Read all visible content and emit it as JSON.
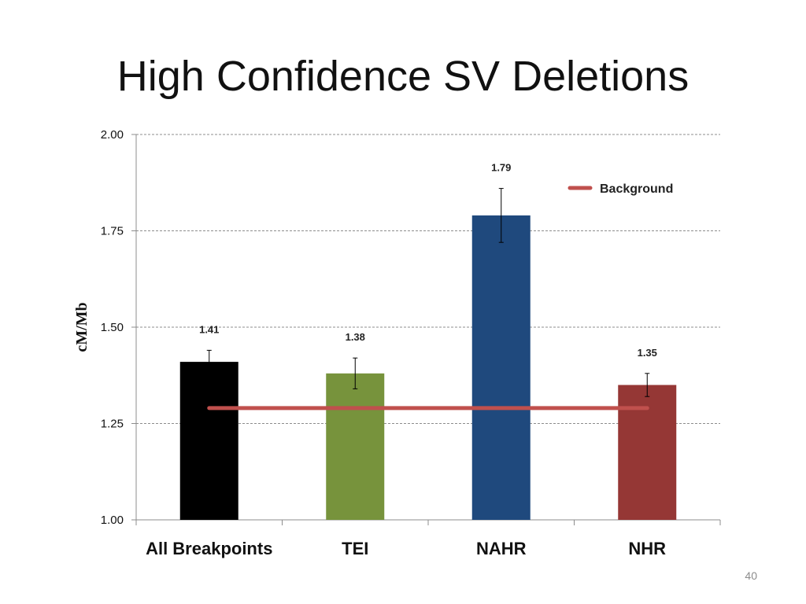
{
  "slide": {
    "title": "High Confidence SV Deletions",
    "page_number": "40"
  },
  "chart_data": {
    "type": "bar",
    "title": "",
    "xlabel": "",
    "ylabel": "cM/Mb",
    "ylim": [
      1.0,
      2.0
    ],
    "yticks": [
      1.0,
      1.25,
      1.5,
      1.75,
      2.0
    ],
    "ytick_labels": [
      "1.00",
      "1.25",
      "1.50",
      "1.75",
      "2.00"
    ],
    "grid": true,
    "categories": [
      "All Breakpoints",
      "TEI",
      "NAHR",
      "NHR"
    ],
    "values": [
      1.41,
      1.38,
      1.79,
      1.35
    ],
    "value_labels": [
      "1.41",
      "1.38",
      "1.79",
      "1.35"
    ],
    "error_low": [
      1.39,
      1.34,
      1.72,
      1.32
    ],
    "error_high": [
      1.44,
      1.42,
      1.86,
      1.38
    ],
    "bar_colors": [
      "#000000",
      "#77933c",
      "#1f497d",
      "#953735"
    ],
    "reference_line": {
      "name": "Background",
      "value": 1.29,
      "color": "#c0504d"
    },
    "legend": {
      "position": "top-right",
      "entries": [
        "Background"
      ]
    }
  }
}
